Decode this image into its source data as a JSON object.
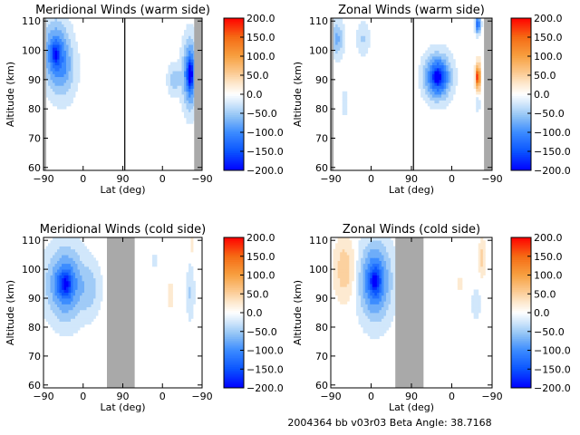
{
  "footer": {
    "text": "2004364 bb v03r03   Beta Angle: 38.7168"
  },
  "colormap": {
    "min": -200,
    "max": 200,
    "ticks": [
      "200.0",
      "150.0",
      "100.0",
      "50.0",
      "0.0",
      "−50.0",
      "−100.0",
      "−150.0",
      "−200.0"
    ],
    "stops": [
      {
        "v": -200,
        "c": "#0000ff"
      },
      {
        "v": -150,
        "c": "#0a55ff"
      },
      {
        "v": -100,
        "c": "#3c8cff"
      },
      {
        "v": -60,
        "c": "#8cc0f5"
      },
      {
        "v": -30,
        "c": "#c8e2fa"
      },
      {
        "v": 0,
        "c": "#ffffff"
      },
      {
        "v": 30,
        "c": "#fde6c8"
      },
      {
        "v": 60,
        "c": "#fbc68a"
      },
      {
        "v": 100,
        "c": "#f7a040"
      },
      {
        "v": 150,
        "c": "#f56a14"
      },
      {
        "v": 200,
        "c": "#ff0000"
      }
    ],
    "no_data_color": "#a9a9a9"
  },
  "chart_data": [
    {
      "type": "heatmap",
      "title": "Meridional Winds (warm side)",
      "xlabel": "Lat (deg)",
      "ylabel": "Altitude (km)",
      "x_ticks": [
        "−90",
        "0",
        "90",
        "0",
        "−90"
      ],
      "y_ticks": [
        "60",
        "70",
        "80",
        "90",
        "100",
        "110"
      ],
      "ylim": [
        59,
        111
      ],
      "gap": [
        2.05,
        2.05
      ],
      "gray": [
        [
          0,
          0.07
        ],
        [
          3.8,
          4
        ]
      ],
      "blobs": [
        {
          "x": 0.3,
          "y": 99,
          "w": 0.32,
          "h": 11,
          "v": -110,
          "m": 0.3
        },
        {
          "x": 0.55,
          "y": 93,
          "w": 0.3,
          "h": 10,
          "v": -45
        },
        {
          "x": 3.3,
          "y": 90,
          "w": 0.16,
          "h": 5,
          "v": -55
        },
        {
          "x": 3.7,
          "y": 92,
          "w": 0.18,
          "h": 11,
          "v": -140,
          "m": 0.35
        }
      ]
    },
    {
      "type": "heatmap",
      "title": "Zonal Winds (warm side)",
      "xlabel": "Lat (deg)",
      "ylabel": "Altitude (km)",
      "x_ticks": [
        "−90",
        "0",
        "90",
        "0",
        "−90"
      ],
      "y_ticks": [
        "60",
        "70",
        "80",
        "90",
        "100",
        "110"
      ],
      "ylim": [
        59,
        111
      ],
      "gap": [
        2.05,
        2.05
      ],
      "gray": [
        [
          0,
          0.07
        ],
        [
          3.8,
          4
        ]
      ],
      "blobs": [
        {
          "x": 0.15,
          "y": 104,
          "w": 0.16,
          "h": 6,
          "v": -70
        },
        {
          "x": 0.8,
          "y": 104,
          "w": 0.15,
          "h": 6,
          "v": -40
        },
        {
          "x": 0.35,
          "y": 82,
          "w": 0.06,
          "h": 4,
          "v": -40
        },
        {
          "x": 2.65,
          "y": 91,
          "w": 0.3,
          "h": 7,
          "v": -170,
          "m": 0.25
        },
        {
          "x": 3.65,
          "y": 109,
          "w": 0.06,
          "h": 3,
          "v": -150
        },
        {
          "x": 3.65,
          "y": 91,
          "w": 0.06,
          "h": 5,
          "v": 130,
          "m": 0.5
        },
        {
          "x": 3.65,
          "y": 82,
          "w": 0.04,
          "h": 3,
          "v": -50
        }
      ]
    },
    {
      "type": "heatmap",
      "title": "Meridional Winds (cold side)",
      "xlabel": "Lat (deg)",
      "ylabel": "Altitude (km)",
      "x_ticks": [
        "−90",
        "0",
        "90",
        "0",
        "−90"
      ],
      "y_ticks": [
        "60",
        "70",
        "80",
        "90",
        "100",
        "110"
      ],
      "ylim": [
        59,
        111
      ],
      "gap": [],
      "gray": [
        [
          1.6,
          2.3
        ]
      ],
      "blobs": [
        {
          "x": 0.55,
          "y": 95,
          "w": 0.45,
          "h": 12,
          "v": -120,
          "m": 0.35
        },
        {
          "x": 1.2,
          "y": 93,
          "w": 0.25,
          "h": 9,
          "v": -40
        },
        {
          "x": 3.2,
          "y": 91,
          "w": 0.08,
          "h": 4,
          "v": 40
        },
        {
          "x": 3.7,
          "y": 92,
          "w": 0.1,
          "h": 9,
          "v": -40
        },
        {
          "x": 3.75,
          "y": 109,
          "w": 0.05,
          "h": 3,
          "v": 35
        },
        {
          "x": 2.8,
          "y": 103,
          "w": 0.05,
          "h": 2,
          "v": -35
        }
      ]
    },
    {
      "type": "heatmap",
      "title": "Zonal Winds (cold side)",
      "xlabel": "Lat (deg)",
      "ylabel": "Altitude (km)",
      "x_ticks": [
        "−90",
        "0",
        "90",
        "0",
        "−90"
      ],
      "y_ticks": [
        "60",
        "70",
        "80",
        "90",
        "100",
        "110"
      ],
      "ylim": [
        59,
        111
      ],
      "gap": [],
      "gray": [
        [
          1.6,
          2.3
        ]
      ],
      "blobs": [
        {
          "x": 0.35,
          "y": 100,
          "w": 0.25,
          "h": 10,
          "v": 60
        },
        {
          "x": 1.1,
          "y": 96,
          "w": 0.38,
          "h": 13,
          "v": -130,
          "m": 0.3
        },
        {
          "x": 3.75,
          "y": 104,
          "w": 0.08,
          "h": 6,
          "v": 45
        },
        {
          "x": 3.6,
          "y": 88,
          "w": 0.1,
          "h": 5,
          "v": -40
        },
        {
          "x": 3.2,
          "y": 95,
          "w": 0.06,
          "h": 3,
          "v": 30
        }
      ]
    }
  ]
}
